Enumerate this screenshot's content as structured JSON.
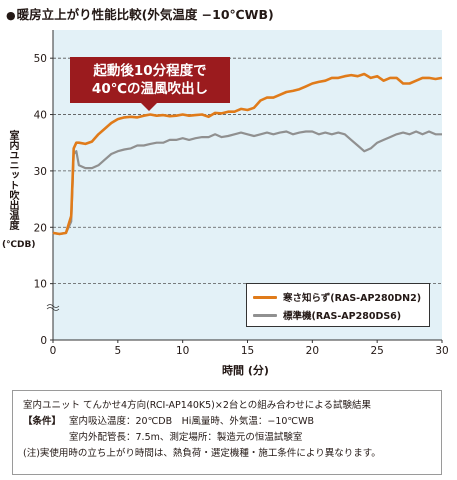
{
  "chart_data": {
    "type": "line",
    "title": "暖房立上がり性能比較(外気温度 −10℃WB)",
    "xlabel": "時間 (分)",
    "ylabel": "室内ユニット吹出温度",
    "yunit": "(℃DB)",
    "xlim": [
      0,
      30
    ],
    "ylim": [
      0,
      55
    ],
    "xticks": [
      0,
      5,
      10,
      15,
      20,
      25,
      30
    ],
    "yticks": [
      0,
      10,
      20,
      30,
      40,
      50
    ],
    "grid": true,
    "legend_position": "bottom-right",
    "annotation": {
      "line1": "起動後10分程度で",
      "line2": "40℃の温風吹出し"
    },
    "series": [
      {
        "name": "寒さ知らず(RAS-AP280DN2)",
        "color": "#e07b1a",
        "x": [
          0,
          0.5,
          1.0,
          1.4,
          1.6,
          1.8,
          2.0,
          2.5,
          3.0,
          3.5,
          4.0,
          4.5,
          5.0,
          5.5,
          6.0,
          6.5,
          7.0,
          7.5,
          8.0,
          8.5,
          9.0,
          9.5,
          10.0,
          10.5,
          11.0,
          11.5,
          12.0,
          12.5,
          13.0,
          13.5,
          14.0,
          14.5,
          15.0,
          15.5,
          16.0,
          16.5,
          17.0,
          17.5,
          18.0,
          18.5,
          19.0,
          19.5,
          20.0,
          20.5,
          21.0,
          21.5,
          22.0,
          22.5,
          23.0,
          23.5,
          24.0,
          24.5,
          25.0,
          25.5,
          26.0,
          26.5,
          27.0,
          27.5,
          28.0,
          28.5,
          29.0,
          29.5,
          30.0
        ],
        "y": [
          19.0,
          18.8,
          19.0,
          22.0,
          34.0,
          35.0,
          35.0,
          34.8,
          35.2,
          36.5,
          37.5,
          38.5,
          39.2,
          39.5,
          39.6,
          39.5,
          39.8,
          40.0,
          39.8,
          39.9,
          39.7,
          39.8,
          40.0,
          39.8,
          39.9,
          40.0,
          39.6,
          40.3,
          40.2,
          40.5,
          40.5,
          41.0,
          40.8,
          41.2,
          42.5,
          43.0,
          43.0,
          43.5,
          44.0,
          44.2,
          44.5,
          45.0,
          45.5,
          45.8,
          46.0,
          46.5,
          46.5,
          46.8,
          47.0,
          46.8,
          47.2,
          46.5,
          46.8,
          46.0,
          46.5,
          46.5,
          45.5,
          45.5,
          46.0,
          46.5,
          46.5,
          46.3,
          46.5
        ]
      },
      {
        "name": "標準機(RAS-AP280DS6)",
        "color": "#909090",
        "x": [
          0,
          0.5,
          1.0,
          1.4,
          1.6,
          1.8,
          2.0,
          2.5,
          3.0,
          3.5,
          4.0,
          4.5,
          5.0,
          5.5,
          6.0,
          6.5,
          7.0,
          7.5,
          8.0,
          8.5,
          9.0,
          9.5,
          10.0,
          10.5,
          11.0,
          11.5,
          12.0,
          12.5,
          13.0,
          13.5,
          14.0,
          14.5,
          15.0,
          15.5,
          16.0,
          16.5,
          17.0,
          17.5,
          18.0,
          18.5,
          19.0,
          19.5,
          20.0,
          20.5,
          21.0,
          21.5,
          22.0,
          22.5,
          23.0,
          23.5,
          24.0,
          24.5,
          25.0,
          25.5,
          26.0,
          26.5,
          27.0,
          27.5,
          28.0,
          28.5,
          29.0,
          29.5,
          30.0
        ],
        "y": [
          19.0,
          18.8,
          19.0,
          21.0,
          33.0,
          33.5,
          31.0,
          30.5,
          30.5,
          31.0,
          32.0,
          33.0,
          33.5,
          33.8,
          34.0,
          34.5,
          34.5,
          34.8,
          35.0,
          35.0,
          35.5,
          35.5,
          35.8,
          35.5,
          35.8,
          36.0,
          36.0,
          36.5,
          36.0,
          36.2,
          36.5,
          36.8,
          36.5,
          36.2,
          36.5,
          36.8,
          36.5,
          36.8,
          37.0,
          36.5,
          36.8,
          37.0,
          37.0,
          36.5,
          36.8,
          36.5,
          36.8,
          36.5,
          35.5,
          34.5,
          33.5,
          34.0,
          35.0,
          35.5,
          36.0,
          36.5,
          36.8,
          36.5,
          37.0,
          36.5,
          37.0,
          36.5,
          36.5
        ]
      }
    ]
  },
  "notes": {
    "heading": "室内ユニット てんかせ4方向(RCI-AP140K5)×2台との組み合わせによる試験結果",
    "conditions_label": "【条件】",
    "conditions_line1": "室内吸込温度：20℃DB　Hi風量時、外気温：−10℃WB",
    "conditions_line2": "室内外配管長：7.5m、測定場所：製造元の恒温試験室",
    "footnote": "(注)実使用時の立ち上がり時間は、熱負荷・選定機種・施工条件により異なります。"
  }
}
